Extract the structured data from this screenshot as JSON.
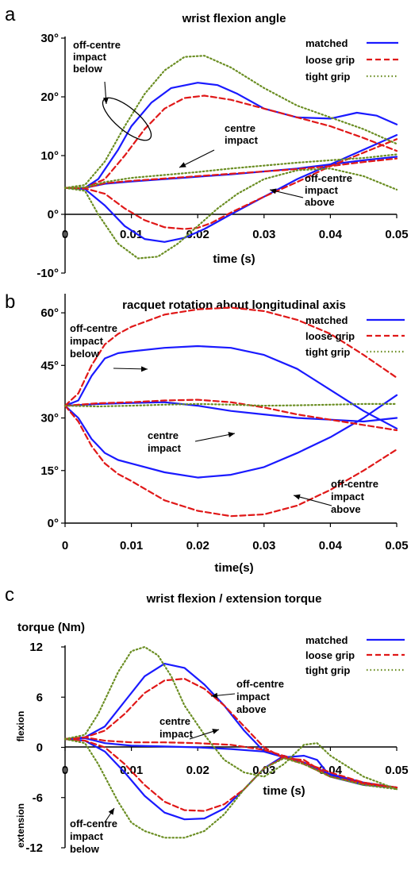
{
  "chart_data": [
    {
      "panel": "a",
      "type": "line",
      "title": "wrist flexion angle",
      "xlabel": "time (s)",
      "ylabel": "",
      "xlim": [
        0,
        0.05
      ],
      "ylim": [
        -10,
        30
      ],
      "x_ticks": [
        "0",
        "0.01",
        "0.02",
        "0.03",
        "0.04",
        "0.05"
      ],
      "y_ticks": [
        "-10°",
        "0°",
        "10°",
        "20°",
        "30°"
      ],
      "grid": false,
      "legend_position": "top-right",
      "legend": [
        {
          "label": "matched",
          "color": "#1a1aff",
          "style": "solid"
        },
        {
          "label": "loose grip",
          "color": "#e01818",
          "style": "dashed"
        },
        {
          "label": "tight grip",
          "color": "#6b8e23",
          "style": "dotted"
        }
      ],
      "annotations": [
        {
          "text": [
            "off-centre",
            "impact",
            "below"
          ]
        },
        {
          "text": [
            "centre",
            "impact"
          ]
        },
        {
          "text": [
            "off-centre",
            "impact",
            "above"
          ]
        }
      ],
      "series": [
        {
          "grip": "matched",
          "case": "off-centre impact below",
          "x": [
            0,
            0.003,
            0.005,
            0.008,
            0.01,
            0.013,
            0.016,
            0.02,
            0.023,
            0.026,
            0.03,
            0.035,
            0.04,
            0.044,
            0.047,
            0.05
          ],
          "y": [
            4.5,
            4.5,
            6,
            11,
            15,
            19,
            21.5,
            22.4,
            22,
            20.5,
            18,
            16.5,
            16.3,
            17.3,
            16.8,
            15.3
          ]
        },
        {
          "grip": "matched",
          "case": "centre impact",
          "x": [
            0,
            0.003,
            0.006,
            0.01,
            0.015,
            0.02,
            0.025,
            0.03,
            0.035,
            0.04,
            0.045,
            0.05
          ],
          "y": [
            4.5,
            4.5,
            5.2,
            5.6,
            6,
            6.4,
            6.8,
            7.3,
            7.8,
            8.5,
            9.2,
            9.8
          ]
        },
        {
          "grip": "matched",
          "case": "off-centre impact above",
          "x": [
            0,
            0.003,
            0.006,
            0.009,
            0.012,
            0.015,
            0.018,
            0.021,
            0.025,
            0.03,
            0.035,
            0.04,
            0.045,
            0.05
          ],
          "y": [
            4.5,
            4.3,
            1.5,
            -2,
            -4.2,
            -4.7,
            -4,
            -2.5,
            0,
            3,
            6,
            8.5,
            11,
            13.5
          ]
        },
        {
          "grip": "loose grip",
          "case": "off-centre impact below",
          "x": [
            0,
            0.003,
            0.006,
            0.009,
            0.012,
            0.015,
            0.018,
            0.021,
            0.025,
            0.03,
            0.035,
            0.04,
            0.045,
            0.05
          ],
          "y": [
            4.5,
            4.5,
            6,
            10,
            14.5,
            18,
            19.8,
            20.2,
            19.5,
            18,
            16.5,
            15,
            13,
            10.8
          ]
        },
        {
          "grip": "loose grip",
          "case": "centre impact",
          "x": [
            0,
            0.003,
            0.006,
            0.01,
            0.015,
            0.02,
            0.025,
            0.03,
            0.035,
            0.04,
            0.045,
            0.05
          ],
          "y": [
            4.5,
            4.5,
            5.3,
            5.7,
            6.1,
            6.5,
            6.9,
            7.3,
            7.7,
            8.2,
            8.9,
            9.5
          ]
        },
        {
          "grip": "loose grip",
          "case": "off-centre impact above",
          "x": [
            0,
            0.003,
            0.006,
            0.009,
            0.012,
            0.015,
            0.018,
            0.02,
            0.022,
            0.025,
            0.03,
            0.035,
            0.04,
            0.045,
            0.05
          ],
          "y": [
            4.5,
            4.4,
            3.5,
            1,
            -1,
            -2.2,
            -2.5,
            -2.3,
            -1.5,
            0.3,
            3,
            5.5,
            8.2,
            10.5,
            12.8
          ]
        },
        {
          "grip": "tight grip",
          "case": "off-centre impact below",
          "x": [
            0,
            0.003,
            0.006,
            0.009,
            0.012,
            0.015,
            0.018,
            0.021,
            0.025,
            0.03,
            0.035,
            0.04,
            0.045,
            0.05
          ],
          "y": [
            4.5,
            5,
            9,
            15,
            20.5,
            24.5,
            26.8,
            27,
            25,
            21.5,
            18.5,
            16.5,
            14.5,
            12
          ]
        },
        {
          "grip": "tight grip",
          "case": "centre impact",
          "x": [
            0,
            0.003,
            0.006,
            0.01,
            0.015,
            0.02,
            0.025,
            0.03,
            0.035,
            0.04,
            0.045,
            0.05
          ],
          "y": [
            4.5,
            4.6,
            5.5,
            6.2,
            6.7,
            7.2,
            7.8,
            8.3,
            8.8,
            9.2,
            9.6,
            10.2
          ]
        },
        {
          "grip": "tight grip",
          "case": "off-centre impact above",
          "x": [
            0,
            0.003,
            0.005,
            0.008,
            0.011,
            0.014,
            0.017,
            0.02,
            0.023,
            0.026,
            0.03,
            0.035,
            0.04,
            0.045,
            0.05
          ],
          "y": [
            4.5,
            4,
            0,
            -5,
            -7.5,
            -7.2,
            -5,
            -2,
            1,
            3.5,
            6,
            7.5,
            7.8,
            6.5,
            4.2
          ]
        }
      ]
    },
    {
      "panel": "b",
      "type": "line",
      "title": "racquet rotation about longitudinal axis",
      "xlabel": "time(s)",
      "ylabel": "",
      "xlim": [
        0,
        0.05
      ],
      "ylim": [
        0,
        65
      ],
      "x_ticks": [
        "0",
        "0.01",
        "0.02",
        "0.03",
        "0.04",
        "0.05"
      ],
      "y_ticks": [
        "0°",
        "15°",
        "30°",
        "45°",
        "60°"
      ],
      "grid": false,
      "legend_position": "top-right",
      "legend": [
        {
          "label": "matched",
          "color": "#1a1aff",
          "style": "solid"
        },
        {
          "label": "loose grip",
          "color": "#e01818",
          "style": "dashed"
        },
        {
          "label": "tight grip",
          "color": "#6b8e23",
          "style": "dotted"
        }
      ],
      "annotations": [
        {
          "text": [
            "off-centre",
            "impact",
            "below"
          ]
        },
        {
          "text": [
            "centre",
            "impact"
          ]
        },
        {
          "text": [
            "off-centre",
            "impact",
            "above"
          ]
        }
      ],
      "series": [
        {
          "grip": "matched",
          "case": "off-centre impact below",
          "x": [
            0,
            0.002,
            0.004,
            0.006,
            0.008,
            0.01,
            0.015,
            0.02,
            0.025,
            0.03,
            0.035,
            0.04,
            0.045,
            0.05
          ],
          "y": [
            33.5,
            35,
            42,
            47,
            48.5,
            49,
            50,
            50.5,
            50,
            48,
            44,
            38,
            32,
            27
          ]
        },
        {
          "grip": "matched",
          "case": "centre impact",
          "x": [
            0,
            0.005,
            0.01,
            0.015,
            0.02,
            0.025,
            0.03,
            0.035,
            0.04,
            0.045,
            0.05
          ],
          "y": [
            33.5,
            34,
            34.3,
            34.5,
            33.5,
            32,
            31,
            30,
            29.5,
            29,
            30
          ]
        },
        {
          "grip": "matched",
          "case": "off-centre impact above",
          "x": [
            0,
            0.002,
            0.004,
            0.006,
            0.008,
            0.01,
            0.015,
            0.02,
            0.025,
            0.03,
            0.035,
            0.04,
            0.045,
            0.05
          ],
          "y": [
            33.5,
            30,
            24,
            20,
            18,
            17,
            14.5,
            13,
            13.8,
            16,
            20,
            24.5,
            30,
            36.5
          ]
        },
        {
          "grip": "loose grip",
          "case": "off-centre impact below",
          "x": [
            0,
            0.002,
            0.004,
            0.006,
            0.008,
            0.01,
            0.015,
            0.02,
            0.025,
            0.03,
            0.035,
            0.04,
            0.045,
            0.05
          ],
          "y": [
            33.5,
            37,
            45,
            51,
            54,
            56,
            59.5,
            61,
            61.5,
            60.5,
            58,
            54,
            48,
            41.5
          ]
        },
        {
          "grip": "loose grip",
          "case": "centre impact",
          "x": [
            0,
            0.005,
            0.01,
            0.015,
            0.02,
            0.025,
            0.03,
            0.035,
            0.04,
            0.045,
            0.05
          ],
          "y": [
            33.5,
            34.2,
            34.5,
            35,
            35.2,
            34.5,
            33,
            31,
            29.5,
            28,
            26.5
          ]
        },
        {
          "grip": "loose grip",
          "case": "off-centre impact above",
          "x": [
            0,
            0.002,
            0.004,
            0.006,
            0.008,
            0.01,
            0.015,
            0.02,
            0.025,
            0.03,
            0.035,
            0.04,
            0.045,
            0.05
          ],
          "y": [
            33.5,
            29,
            22,
            17,
            14,
            12,
            6.5,
            3.5,
            2,
            2.5,
            5,
            9.5,
            15,
            21
          ]
        },
        {
          "grip": "tight grip",
          "case": "centre impact",
          "x": [
            0,
            0.005,
            0.01,
            0.015,
            0.02,
            0.025,
            0.03,
            0.035,
            0.04,
            0.045,
            0.05
          ],
          "y": [
            33.5,
            33.3,
            33.5,
            33.8,
            34,
            33.8,
            33.5,
            33.6,
            33.8,
            34,
            34
          ]
        }
      ]
    },
    {
      "panel": "c",
      "type": "line",
      "title": "wrist flexion / extension torque",
      "xlabel": "time (s)",
      "ylabel": "torque (Nm)",
      "side_labels": [
        "flexion",
        "extension"
      ],
      "xlim": [
        0,
        0.05
      ],
      "ylim": [
        -12,
        12
      ],
      "x_ticks": [
        "0",
        "0.01",
        "0.02",
        "0.03",
        "0.04",
        "0.05"
      ],
      "y_ticks": [
        "-12",
        "-6",
        "0",
        "6",
        "12"
      ],
      "grid": false,
      "legend_position": "top-right",
      "legend": [
        {
          "label": "matched",
          "color": "#1a1aff",
          "style": "solid"
        },
        {
          "label": "loose grip",
          "color": "#e01818",
          "style": "dashed"
        },
        {
          "label": "tight grip",
          "color": "#6b8e23",
          "style": "dotted"
        }
      ],
      "annotations": [
        {
          "text": [
            "off-centre",
            "impact",
            "above"
          ]
        },
        {
          "text": [
            "centre",
            "impact"
          ]
        },
        {
          "text": [
            "off-centre",
            "impact",
            "below"
          ]
        }
      ],
      "series": [
        {
          "grip": "matched",
          "case": "off-centre impact above",
          "x": [
            0,
            0.003,
            0.006,
            0.009,
            0.012,
            0.015,
            0.018,
            0.021,
            0.024,
            0.027,
            0.03,
            0.033,
            0.036,
            0.038,
            0.04,
            0.045,
            0.05
          ],
          "y": [
            1,
            1.2,
            2.5,
            5.5,
            8.5,
            10,
            9.5,
            7.5,
            5,
            2,
            -0.5,
            -1.2,
            -1,
            -1.5,
            -3.5,
            -4.5,
            -4.8
          ]
        },
        {
          "grip": "matched",
          "case": "centre impact",
          "x": [
            0,
            0.003,
            0.006,
            0.01,
            0.015,
            0.02,
            0.025,
            0.03,
            0.035,
            0.04,
            0.045,
            0.05
          ],
          "y": [
            1,
            1.1,
            0.5,
            0.2,
            0.1,
            0,
            -0.2,
            -0.5,
            -1.5,
            -3.2,
            -4.2,
            -4.8
          ]
        },
        {
          "grip": "matched",
          "case": "off-centre impact below",
          "x": [
            0,
            0.003,
            0.006,
            0.009,
            0.012,
            0.015,
            0.018,
            0.021,
            0.024,
            0.027,
            0.03,
            0.033,
            0.036,
            0.04,
            0.045,
            0.05
          ],
          "y": [
            1,
            0.8,
            -0.5,
            -3,
            -5.8,
            -7.8,
            -8.6,
            -8.5,
            -7.3,
            -5,
            -2.5,
            -1,
            -1.8,
            -3.3,
            -4.3,
            -4.8
          ]
        },
        {
          "grip": "loose grip",
          "case": "off-centre impact above",
          "x": [
            0,
            0.003,
            0.006,
            0.009,
            0.012,
            0.015,
            0.018,
            0.021,
            0.024,
            0.027,
            0.03,
            0.033,
            0.036,
            0.04,
            0.045,
            0.05
          ],
          "y": [
            1,
            1.2,
            2,
            4,
            6.5,
            8,
            8.2,
            7,
            5,
            2.5,
            0,
            -1.3,
            -1.5,
            -3.5,
            -4.3,
            -4.8
          ]
        },
        {
          "grip": "loose grip",
          "case": "centre impact",
          "x": [
            0,
            0.003,
            0.006,
            0.01,
            0.015,
            0.02,
            0.025,
            0.03,
            0.035,
            0.04,
            0.045,
            0.05
          ],
          "y": [
            1,
            1.2,
            0.8,
            0.6,
            0.6,
            0.5,
            0.3,
            -0.3,
            -1.5,
            -3,
            -4.2,
            -4.8
          ]
        },
        {
          "grip": "loose grip",
          "case": "off-centre impact below",
          "x": [
            0,
            0.003,
            0.006,
            0.009,
            0.012,
            0.015,
            0.018,
            0.021,
            0.024,
            0.027,
            0.03,
            0.033,
            0.036,
            0.04,
            0.045,
            0.05
          ],
          "y": [
            1,
            0.8,
            0,
            -2,
            -4.5,
            -6.5,
            -7.5,
            -7.6,
            -6.8,
            -5,
            -2.5,
            -1.2,
            -2,
            -3.5,
            -4.4,
            -4.8
          ]
        },
        {
          "grip": "tight grip",
          "case": "off-centre impact above",
          "x": [
            0,
            0.003,
            0.005,
            0.008,
            0.01,
            0.012,
            0.014,
            0.016,
            0.018,
            0.021,
            0.024,
            0.027,
            0.03,
            0.033,
            0.036,
            0.038,
            0.04,
            0.045,
            0.05
          ],
          "y": [
            1,
            1.5,
            4,
            9,
            11.5,
            12,
            11,
            8.5,
            5,
            1.5,
            -1.5,
            -3,
            -3.5,
            -2,
            0.3,
            0.5,
            -1,
            -3.5,
            -5
          ]
        },
        {
          "grip": "tight grip",
          "case": "off-centre impact below",
          "x": [
            0,
            0.003,
            0.005,
            0.008,
            0.01,
            0.012,
            0.015,
            0.018,
            0.021,
            0.024,
            0.027,
            0.03,
            0.033,
            0.036,
            0.04,
            0.045,
            0.05
          ],
          "y": [
            1,
            0.5,
            -2,
            -6.5,
            -9,
            -10,
            -10.8,
            -10.8,
            -10,
            -8,
            -5,
            -2.5,
            -1.3,
            -2,
            -3.5,
            -4.5,
            -5
          ]
        }
      ]
    }
  ]
}
